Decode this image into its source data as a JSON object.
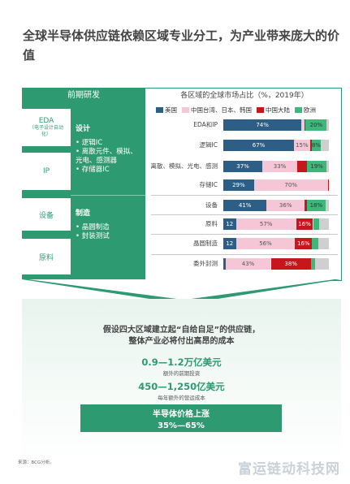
{
  "title": "全球半导体供应链依赖区域专业分工，为产业带来庞大的价值",
  "left_panel": {
    "header": "前期研发",
    "boxes": {
      "eda": "EDA",
      "eda_sub": "（电子设计自动化）",
      "ip": "IP",
      "equipment": "设备",
      "materials": "原料"
    },
    "design": {
      "title": "设计",
      "items": [
        "逻辑IC",
        "离散元件、模拟、光电、感测器",
        "存储器IC"
      ]
    },
    "manufacturing": {
      "title": "制造",
      "items": [
        "晶圆制造",
        "封装测试"
      ]
    }
  },
  "chart_data": {
    "type": "bar",
    "title": "各区域的全球市场占比（%，2019年）",
    "legend_placement": "top",
    "legend": [
      "美国",
      "中国台湾、日本、韩国",
      "中国大陆",
      "欧洲"
    ],
    "colors": {
      "美国": "#2d5f86",
      "中国台湾、日本、韩国": "#f5c6d6",
      "中国大陆": "#c8161d",
      "欧洲": "#3db77a",
      "其他": "#cfcfcf"
    },
    "categories": [
      "EDA和IP",
      "逻辑IC",
      "离散、模拟、光电、感测",
      "存储IC",
      "设备",
      "原料",
      "晶圆制造",
      "委外封测"
    ],
    "series": [
      {
        "name": "美国",
        "values": [
          74,
          67,
          37,
          29,
          41,
          12,
          12,
          2
        ]
      },
      {
        "name": "中国台湾、日本、韩国",
        "values": [
          3,
          15,
          33,
          70,
          36,
          57,
          56,
          43
        ]
      },
      {
        "name": "中国大陆",
        "values": [
          1,
          2,
          9,
          1,
          2,
          16,
          16,
          38
        ]
      },
      {
        "name": "欧洲",
        "values": [
          20,
          8,
          19,
          0,
          18,
          6,
          6,
          4
        ]
      },
      {
        "name": "其他",
        "values": [
          2,
          8,
          2,
          0,
          3,
          9,
          10,
          13
        ]
      }
    ],
    "labels": [
      [
        "74%",
        "",
        "",
        "20%",
        ""
      ],
      [
        "67%",
        "15%",
        "",
        "8%",
        ""
      ],
      [
        "37%",
        "33%",
        "",
        "19%",
        ""
      ],
      [
        "29%",
        "70%",
        "",
        "",
        ""
      ],
      [
        "41%",
        "36%",
        "",
        "18%",
        ""
      ],
      [
        "12",
        "57%",
        "16%",
        "",
        ""
      ],
      [
        "12",
        "56%",
        "16%",
        "",
        ""
      ],
      [
        "",
        "43%",
        "38%",
        "",
        ""
      ]
    ],
    "xlim": [
      0,
      100
    ]
  },
  "lower": {
    "question_line1": "假设四大区域建立起“自给自足”的供应链，",
    "question_line2": "整体产业必将付出高昂的成本",
    "cost1_value": "0.9—1.2万亿美元",
    "cost1_label": "额外的前期投资",
    "cost2_value": "450—1,250亿美元",
    "cost2_label": "每年额外的营运成本",
    "price_title": "半导体价格上涨",
    "price_value": "35%—65%"
  },
  "source": "来源：BCG分析。",
  "watermark": "富运链动科技网"
}
